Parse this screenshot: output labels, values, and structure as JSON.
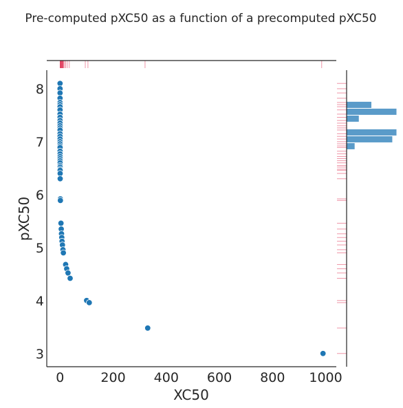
{
  "figure": {
    "title": "Pre-computed pXC50 as a function of a precomputed pXC50"
  },
  "colors": {
    "point": "#1f77b4",
    "point_edge": "#ffffff",
    "hist": "#5a9bc9",
    "rug": "#dc143c",
    "axis": "#262626",
    "background": "#ffffff"
  },
  "chart_data": {
    "type": "scatter",
    "title": "Pre-computed pXC50 as a function of a precomputed pXC50",
    "xlabel": "XC50",
    "ylabel": "pXC50",
    "xlim": [
      -50,
      1040
    ],
    "ylim": [
      2.75,
      8.35
    ],
    "xticks": [
      0,
      200,
      400,
      600,
      800,
      1000
    ],
    "yticks": [
      3,
      4,
      5,
      6,
      7,
      8
    ],
    "grid": false,
    "legend": "none",
    "x": [
      0.008,
      0.01,
      0.012,
      0.015,
      0.018,
      0.02,
      0.022,
      0.025,
      0.03,
      0.035,
      0.04,
      0.045,
      0.05,
      0.055,
      0.06,
      0.07,
      0.08,
      0.09,
      0.1,
      0.11,
      0.12,
      0.13,
      0.15,
      0.17,
      0.19,
      0.21,
      0.23,
      0.25,
      0.28,
      0.3,
      0.33,
      0.35,
      0.4,
      0.5,
      1.2,
      1.3,
      3.5,
      4.5,
      5.5,
      6.5,
      7.5,
      9,
      11,
      12.5,
      21,
      25,
      30,
      38,
      100,
      110,
      330,
      990
    ],
    "y": [
      8.1,
      8.0,
      7.92,
      7.82,
      7.74,
      7.7,
      7.66,
      7.6,
      7.52,
      7.46,
      7.4,
      7.35,
      7.3,
      7.26,
      7.22,
      7.15,
      7.1,
      7.05,
      7.0,
      6.96,
      6.92,
      6.89,
      6.82,
      6.77,
      6.72,
      6.68,
      6.64,
      6.6,
      6.55,
      6.52,
      6.48,
      6.46,
      6.4,
      6.3,
      5.92,
      5.89,
      5.46,
      5.35,
      5.26,
      5.19,
      5.12,
      5.05,
      4.96,
      4.9,
      4.68,
      4.6,
      4.52,
      4.42,
      4.0,
      3.96,
      3.48,
      3.0
    ],
    "marginal_x": {
      "type": "rug",
      "x": [
        0.5,
        1,
        1.5,
        2,
        3,
        4,
        5,
        6,
        7,
        8,
        9,
        10,
        11,
        12,
        14,
        18,
        22,
        28,
        35,
        95,
        105,
        320,
        985
      ]
    },
    "marginal_y": {
      "type": "histogram",
      "orientation": "horizontal",
      "bins": [
        {
          "from": 6.85,
          "to": 6.98,
          "count": 2
        },
        {
          "from": 6.98,
          "to": 7.11,
          "count": 11
        },
        {
          "from": 7.11,
          "to": 7.24,
          "count": 12
        },
        {
          "from": 7.24,
          "to": 7.37,
          "count": 0
        },
        {
          "from": 7.37,
          "to": 7.5,
          "count": 3
        },
        {
          "from": 7.5,
          "to": 7.63,
          "count": 12
        },
        {
          "from": 7.63,
          "to": 7.76,
          "count": 6
        }
      ],
      "rug_y": [
        3.0,
        3.48,
        3.96,
        4.0,
        4.42,
        4.52,
        4.6,
        4.68,
        4.9,
        4.96,
        5.05,
        5.12,
        5.19,
        5.26,
        5.35,
        5.46,
        5.89,
        5.92,
        6.3,
        6.4,
        6.46,
        6.48,
        6.52,
        6.55,
        6.6,
        6.64,
        6.68,
        6.72,
        6.77,
        6.82,
        6.89,
        6.92,
        6.96,
        7.0,
        7.05,
        7.1,
        7.15,
        7.22,
        7.26,
        7.3,
        7.35,
        7.4,
        7.46,
        7.52,
        7.6,
        7.66,
        7.7,
        7.74,
        7.82,
        7.92,
        8.0,
        8.1
      ]
    }
  }
}
